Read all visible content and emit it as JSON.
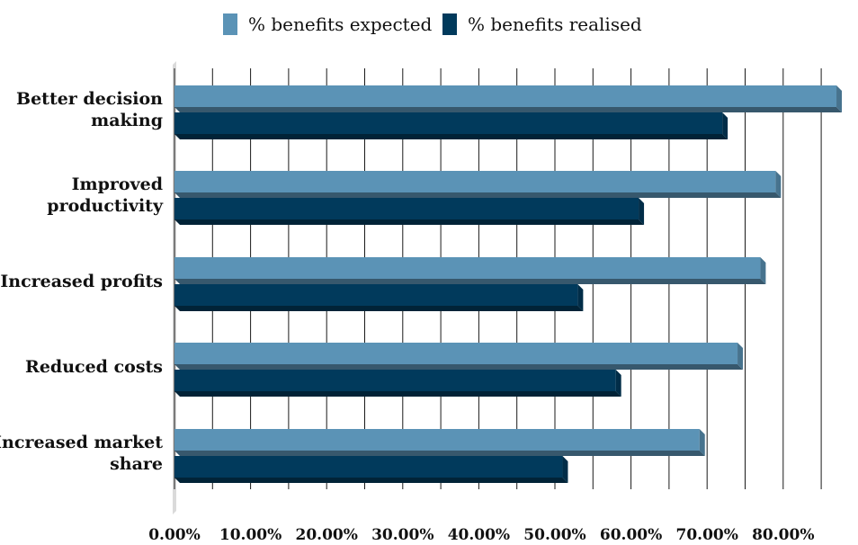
{
  "chart_data": {
    "type": "bar",
    "orientation": "horizontal",
    "categories": [
      [
        "Better decision",
        "making"
      ],
      [
        "Improved",
        "productivity"
      ],
      [
        "Increased profits"
      ],
      [
        "Reduced costs"
      ],
      [
        "Increased market",
        "share"
      ]
    ],
    "series": [
      {
        "name": "% benefits expected",
        "color": "#5b93b6",
        "values": [
          87,
          79,
          77,
          74,
          69
        ]
      },
      {
        "name": "% benefits realised",
        "color": "#013a5c",
        "values": [
          72,
          61,
          53,
          58,
          51
        ]
      }
    ],
    "x_ticks": [
      "0.00%",
      "10.00%",
      "20.00%",
      "30.00%",
      "40.00%",
      "50.00%",
      "60.00%",
      "70.00%",
      "80.00%"
    ],
    "xlim": [
      0,
      87
    ],
    "grid": true,
    "legend_position": "top",
    "style": "3d"
  }
}
